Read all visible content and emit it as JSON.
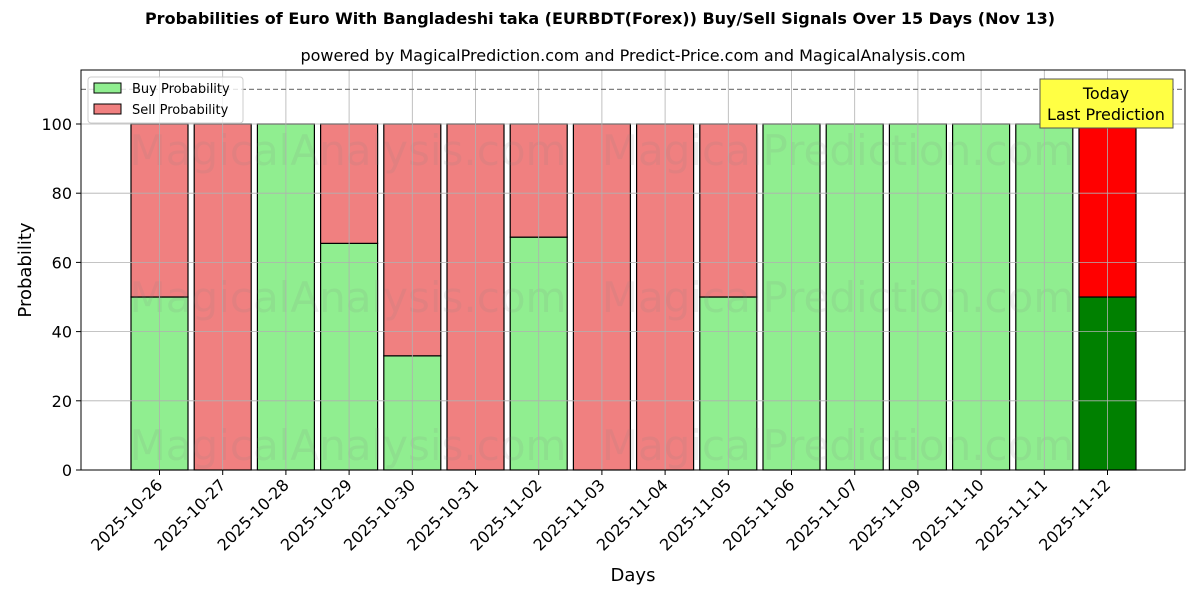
{
  "header": {
    "title": "Probabilities of Euro With Bangladeshi taka (EURBDT(Forex)) Buy/Sell Signals Over 15 Days (Nov 13)",
    "subtitle": "powered by MagicalPrediction.com and Predict-Price.com and MagicalAnalysis.com"
  },
  "annotation": {
    "line1": "Today",
    "line2": "Last Prediction",
    "bg_color": "#ffff44"
  },
  "watermarks": [
    "MagicalAnalysis.com",
    "MagicalPrediction.com"
  ],
  "colors": {
    "buy": "#90ee90",
    "sell": "#f08080",
    "today_buy": "#008000",
    "today_sell": "#ff0000",
    "threshold_line": "#808080"
  },
  "chart_data": {
    "type": "bar",
    "stacked": true,
    "title": "Probabilities of Euro With Bangladeshi taka (EURBDT(Forex)) Buy/Sell Signals Over 15 Days (Nov 13)",
    "subtitle": "powered by MagicalPrediction.com and Predict-Price.com and MagicalAnalysis.com",
    "xlabel": "Days",
    "ylabel": "Probability",
    "ylim": [
      0,
      115
    ],
    "yticks": [
      0,
      20,
      40,
      60,
      80,
      100
    ],
    "grid": true,
    "legend_position": "upper left",
    "threshold_line": 110,
    "categories": [
      "2025-10-26",
      "2025-10-27",
      "2025-10-28",
      "2025-10-29",
      "2025-10-30",
      "2025-10-31",
      "2025-11-02",
      "2025-11-03",
      "2025-11-04",
      "2025-11-05",
      "2025-11-06",
      "2025-11-07",
      "2025-11-09",
      "2025-11-10",
      "2025-11-11",
      "2025-11-12"
    ],
    "series": [
      {
        "name": "Buy Probability",
        "values": [
          50,
          0,
          100,
          65.5,
          33,
          0,
          67.3,
          0,
          0,
          50,
          100,
          100,
          100,
          100,
          100,
          50
        ]
      },
      {
        "name": "Sell Probability",
        "values": [
          50,
          100,
          0,
          34.5,
          67,
          100,
          32.7,
          100,
          100,
          50,
          0,
          0,
          0,
          0,
          0,
          50
        ]
      }
    ],
    "highlight_last": true,
    "annotations": [
      "Today",
      "Last Prediction"
    ]
  }
}
